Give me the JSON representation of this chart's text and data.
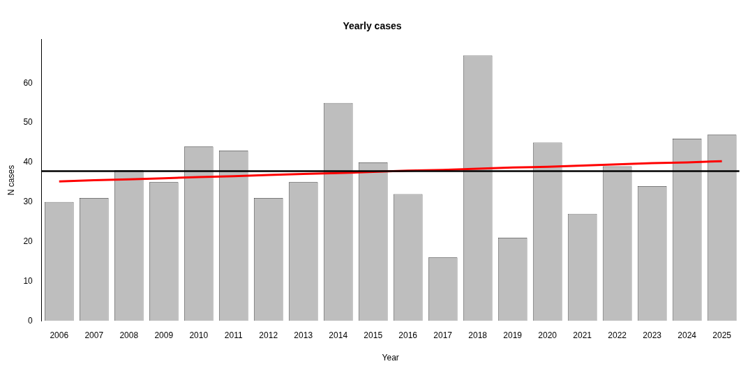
{
  "chart_data": {
    "type": "bar",
    "title": "Yearly cases",
    "xlabel": "Year",
    "ylabel": "N cases",
    "categories": [
      "2006",
      "2007",
      "2008",
      "2009",
      "2010",
      "2011",
      "2012",
      "2013",
      "2014",
      "2015",
      "2016",
      "2017",
      "2018",
      "2019",
      "2020",
      "2021",
      "2022",
      "2023",
      "2024",
      "2025"
    ],
    "series": [
      {
        "color": "#bebebe",
        "values": [
          30,
          31,
          38,
          35,
          44,
          43,
          31,
          35,
          55,
          40,
          32,
          16,
          67,
          21,
          45,
          27,
          39,
          34,
          46,
          47
        ]
      },
      {
        "type": "line",
        "color": "#ff0000",
        "values": [
          35.2,
          35.5,
          35.7,
          36.0,
          36.3,
          36.5,
          36.8,
          37.1,
          37.3,
          37.6,
          37.9,
          38.1,
          38.4,
          38.7,
          38.9,
          39.2,
          39.5,
          39.8,
          40.0,
          40.3
        ]
      }
    ],
    "ylim": [
      0,
      71
    ],
    "yticks": [
      0,
      10,
      20,
      30,
      40,
      50,
      60
    ],
    "ref_lines": [
      {
        "axis": "y",
        "value": 37.8,
        "color": "#000000"
      }
    ],
    "grid": false,
    "legend": false
  }
}
